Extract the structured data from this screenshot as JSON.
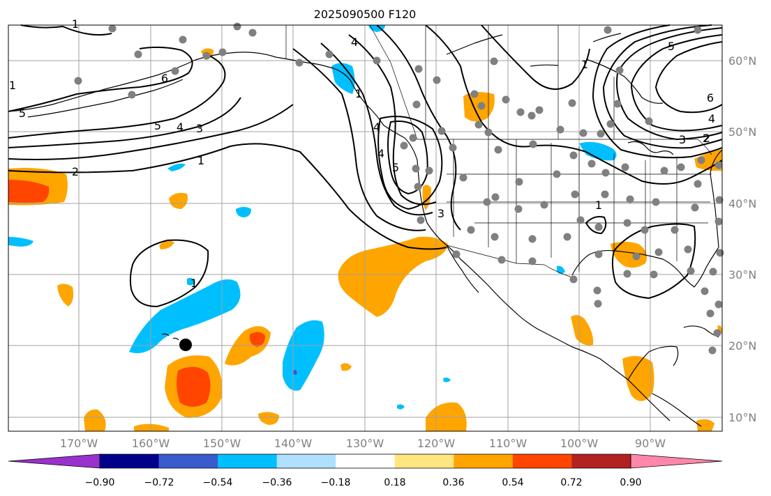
{
  "title": "2025090500 F120",
  "lon_labels": [
    "170°W",
    "160°W",
    "150°W",
    "140°W",
    "130°W",
    "120°W",
    "110°W",
    "100°W",
    "90°W"
  ],
  "lat_labels": [
    "60°N",
    "50°N",
    "40°N",
    "30°N",
    "20°N",
    "10°N"
  ],
  "colorbar": {
    "colors": [
      "#9932cc",
      "#00008b",
      "#3a5bcc",
      "#00bfff",
      "#b0e0ff",
      "#ffffff",
      "#ffe680",
      "#ffa500",
      "#ff4500",
      "#b22222",
      "#ff88aa"
    ],
    "tick_labels": [
      "−0.90",
      "−0.72",
      "−0.54",
      "−0.36",
      "−0.18",
      "0.18",
      "0.36",
      "0.54",
      "0.72",
      "0.90"
    ]
  },
  "contour_labels": [
    "5",
    "4",
    "3",
    "2",
    "1",
    "5",
    "4",
    "6",
    "4",
    "1",
    "1",
    "5",
    "4",
    "3",
    "2",
    "1",
    "5",
    "6",
    "4",
    "3",
    "2",
    "1",
    "1",
    "1"
  ],
  "colors": {
    "land": "#000000",
    "grid": "#a0a0a0",
    "station": "#808080",
    "marker": "#000000"
  }
}
